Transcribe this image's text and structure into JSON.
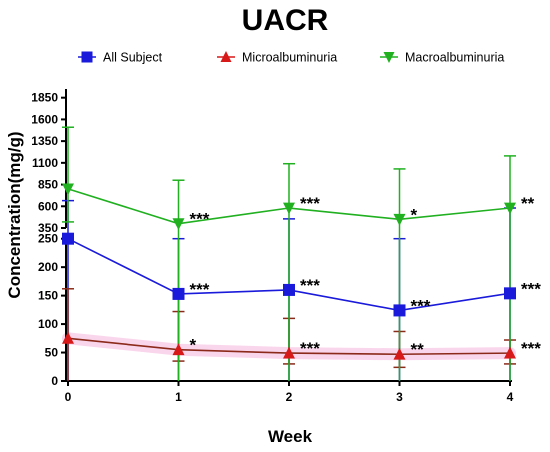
{
  "chart_data": {
    "type": "line",
    "title": "UACR",
    "xlabel": "Week",
    "ylabel": "Concentration(mg/g)",
    "x": [
      0,
      1,
      2,
      3,
      4
    ],
    "x_ticks": [
      "0",
      "1",
      "2",
      "3",
      "4"
    ],
    "y_axis_break": true,
    "y_segments": [
      {
        "range": [
          0,
          260
        ],
        "ticks": [
          "0",
          "50",
          "100",
          "150",
          "200",
          "250"
        ]
      },
      {
        "range": [
          350,
          1950
        ],
        "ticks": [
          "350",
          "600",
          "850",
          "1100",
          "1350",
          "1600",
          "1850"
        ]
      }
    ],
    "legend_position": "top",
    "series": [
      {
        "name": "All Subject",
        "color": "#1a1adb",
        "marker": "square",
        "values": [
          250,
          153,
          160,
          124,
          154
        ],
        "err_upper": [
          665,
          250,
          455,
          250,
          580
        ],
        "err_lower": [
          0,
          0,
          0,
          0,
          0
        ],
        "significance": [
          "",
          "***",
          "***",
          "***",
          "***"
        ]
      },
      {
        "name": "Microalbuminuria",
        "color": "#d81919",
        "line_color": "#8b2a1a",
        "marker": "triangle-up",
        "values": [
          75,
          55,
          49,
          47,
          49
        ],
        "err_upper": [
          162,
          122,
          110,
          87,
          72
        ],
        "err_lower": [
          0,
          35,
          30,
          24,
          30
        ],
        "significance": [
          "",
          "*",
          "***",
          "**",
          "***"
        ]
      },
      {
        "name": "Macroalbuminuria",
        "color": "#20b020",
        "marker": "triangle-down",
        "values": [
          800,
          400,
          580,
          450,
          580
        ],
        "err_upper": [
          1510,
          900,
          1090,
          1030,
          1180
        ],
        "err_lower": [
          420,
          0,
          0,
          0,
          0
        ],
        "significance": [
          "",
          "***",
          "***",
          "*",
          "**"
        ]
      }
    ]
  }
}
